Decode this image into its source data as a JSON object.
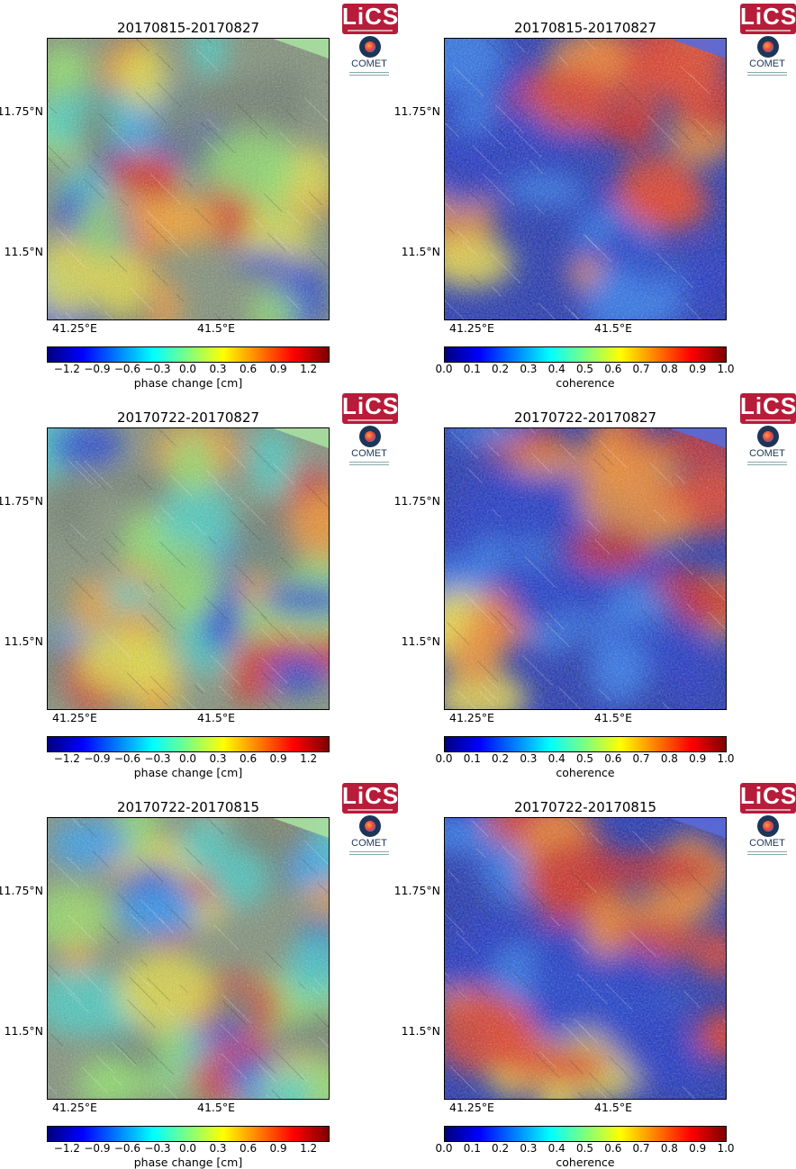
{
  "panels": [
    {
      "title": "20170815-20170827",
      "type": "phase"
    },
    {
      "title": "20170815-20170827",
      "type": "coherence"
    },
    {
      "title": "20170722-20170827",
      "type": "phase"
    },
    {
      "title": "20170722-20170827",
      "type": "coherence"
    },
    {
      "title": "20170722-20170815",
      "type": "phase"
    },
    {
      "title": "20170722-20170815",
      "type": "coherence"
    }
  ],
  "axes": {
    "lat_labels": [
      "11.75°N",
      "11.5°N"
    ],
    "lon_labels": [
      "41.25°E",
      "41.5°E"
    ]
  },
  "phase_colorbar": {
    "label": "phase change [cm]",
    "ticks": [
      "−1.2",
      "−0.9",
      "−0.6",
      "−0.3",
      "0.0",
      "0.3",
      "0.6",
      "0.9",
      "1.2"
    ],
    "range": [
      -1.4,
      1.4
    ]
  },
  "coherence_colorbar": {
    "label": "coherence",
    "ticks": [
      "0.0",
      "0.1",
      "0.2",
      "0.3",
      "0.4",
      "0.5",
      "0.6",
      "0.7",
      "0.8",
      "0.9",
      "1.0"
    ],
    "range": [
      0.0,
      1.0
    ]
  },
  "logos": {
    "lics": "LiCS",
    "comet": "COMET"
  },
  "colors": {
    "jet": [
      "#00007f",
      "#0000ff",
      "#007fff",
      "#00ffff",
      "#7fff7f",
      "#ffff00",
      "#ff7f00",
      "#ff0000",
      "#7f0000"
    ]
  }
}
